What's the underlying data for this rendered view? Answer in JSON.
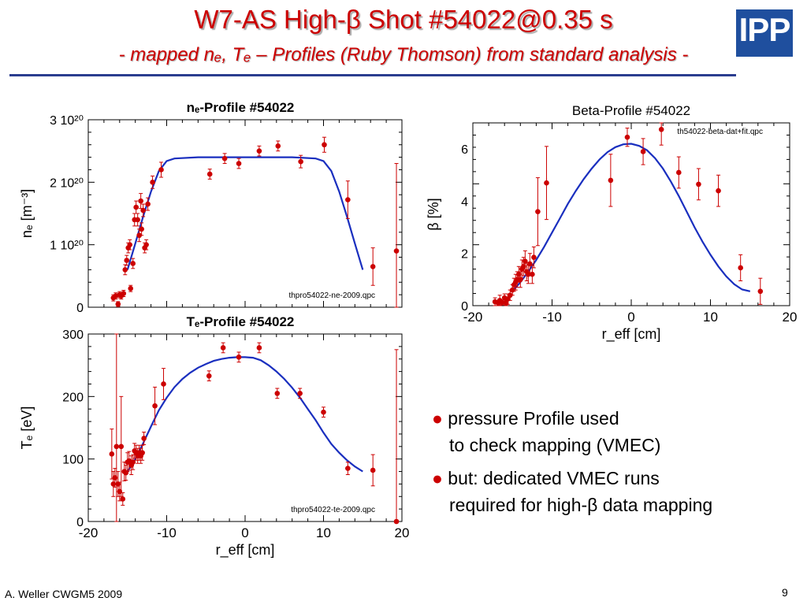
{
  "slide": {
    "title": "W7-AS High-β Shot #54022@0.35 s",
    "subtitle": "- mapped nₑ, Tₑ – Profiles (Ruby Thomson) from standard analysis -",
    "logo_text": "IPP",
    "footer": "A. Weller CWGM5 2009",
    "page_number": "9",
    "bullets": [
      {
        "line1": "pressure Profile used",
        "line2": "to check mapping (VMEC)"
      },
      {
        "line1": "but: dedicated VMEC runs",
        "line2": "required for high-β data mapping"
      }
    ]
  },
  "colors": {
    "title": "#cc0000",
    "points": "#cc0000",
    "fit_line": "#1a2fbf",
    "rule": "#2a3d8f",
    "logo": "#1f4f9e"
  },
  "chart_data": [
    {
      "id": "ne",
      "type": "scatter",
      "title": "nₑ-Profile #54022",
      "ylabel": "nₑ [m⁻³]",
      "xlabel": "",
      "xlim": [
        -20,
        20
      ],
      "ylim": [
        0,
        3.0
      ],
      "yticks": [
        {
          "v": 0,
          "label": "0"
        },
        {
          "v": 1,
          "label": "1 10²⁰"
        },
        {
          "v": 2,
          "label": "2 10²⁰"
        },
        {
          "v": 3,
          "label": "3 10²⁰"
        }
      ],
      "xticks": [],
      "annotation": "thpro54022-ne-2009.qpc",
      "y_unit_note": "values in 1e20 m^-3",
      "points": [
        [
          -16.8,
          0.15,
          0.05
        ],
        [
          -16.5,
          0.18,
          0.05
        ],
        [
          -16.2,
          0.05,
          0.04
        ],
        [
          -16.0,
          0.2,
          0.05
        ],
        [
          -15.8,
          0.18,
          0.05
        ],
        [
          -15.5,
          0.22,
          0.05
        ],
        [
          -15.3,
          0.6,
          0.08
        ],
        [
          -15.1,
          0.75,
          0.08
        ],
        [
          -14.9,
          0.95,
          0.08
        ],
        [
          -14.7,
          1.0,
          0.08
        ],
        [
          -14.6,
          0.3,
          0.05
        ],
        [
          -14.3,
          0.7,
          0.08
        ],
        [
          -14.1,
          1.4,
          0.1
        ],
        [
          -13.9,
          1.6,
          0.1
        ],
        [
          -13.7,
          1.4,
          0.1
        ],
        [
          -13.5,
          1.15,
          0.1
        ],
        [
          -13.3,
          1.7,
          0.12
        ],
        [
          -13.2,
          1.25,
          0.1
        ],
        [
          -13.0,
          1.55,
          0.1
        ],
        [
          -12.8,
          0.95,
          0.08
        ],
        [
          -12.6,
          1.0,
          0.08
        ],
        [
          -12.4,
          1.65,
          0.1
        ],
        [
          -11.8,
          2.0,
          0.1
        ],
        [
          -10.7,
          2.2,
          0.12
        ],
        [
          -4.5,
          2.13,
          0.08
        ],
        [
          -2.6,
          2.38,
          0.08
        ],
        [
          -0.8,
          2.3,
          0.08
        ],
        [
          1.8,
          2.5,
          0.08
        ],
        [
          4.2,
          2.58,
          0.08
        ],
        [
          7.1,
          2.33,
          0.1
        ],
        [
          10.1,
          2.6,
          0.12
        ],
        [
          13.1,
          1.72,
          0.3
        ],
        [
          16.3,
          0.65,
          0.3
        ],
        [
          19.3,
          0.9,
          1.4
        ]
      ],
      "fit": [
        [
          -15.0,
          0.6
        ],
        [
          -14.0,
          1.02
        ],
        [
          -13.0,
          1.45
        ],
        [
          -12.0,
          1.85
        ],
        [
          -11.0,
          2.18
        ],
        [
          -10.0,
          2.34
        ],
        [
          -9.0,
          2.38
        ],
        [
          -6.0,
          2.4
        ],
        [
          -3.0,
          2.4
        ],
        [
          0.0,
          2.4
        ],
        [
          3.0,
          2.4
        ],
        [
          6.0,
          2.4
        ],
        [
          9.0,
          2.38
        ],
        [
          10.0,
          2.34
        ],
        [
          11.0,
          2.18
        ],
        [
          12.0,
          1.85
        ],
        [
          13.0,
          1.45
        ],
        [
          14.0,
          1.02
        ],
        [
          15.0,
          0.6
        ]
      ]
    },
    {
      "id": "te",
      "type": "scatter",
      "title": "Tₑ-Profile #54022",
      "ylabel": "Tₑ [eV]",
      "xlabel": "r_eff [cm]",
      "xlim": [
        -20,
        20
      ],
      "ylim": [
        0,
        300
      ],
      "yticks": [
        {
          "v": 0,
          "label": "0"
        },
        {
          "v": 100,
          "label": "100"
        },
        {
          "v": 200,
          "label": "200"
        },
        {
          "v": 300,
          "label": "300"
        }
      ],
      "xticks": [
        {
          "v": -20,
          "label": "-20"
        },
        {
          "v": -10,
          "label": "-10"
        },
        {
          "v": 0,
          "label": "0"
        },
        {
          "v": 10,
          "label": "10"
        },
        {
          "v": 20,
          "label": "20"
        }
      ],
      "annotation": "thpro54022-te-2009.qpc",
      "points": [
        [
          -17.0,
          108,
          40
        ],
        [
          -16.8,
          60,
          20
        ],
        [
          -16.6,
          70,
          15
        ],
        [
          -16.4,
          120,
          200
        ],
        [
          -16.2,
          60,
          20
        ],
        [
          -16.0,
          48,
          15
        ],
        [
          -15.8,
          120,
          80
        ],
        [
          -15.6,
          36,
          10
        ],
        [
          -15.4,
          80,
          15
        ],
        [
          -15.2,
          78,
          12
        ],
        [
          -15.0,
          95,
          15
        ],
        [
          -14.8,
          97,
          15
        ],
        [
          -14.5,
          90,
          15
        ],
        [
          -14.3,
          95,
          12
        ],
        [
          -14.1,
          113,
          12
        ],
        [
          -13.9,
          110,
          12
        ],
        [
          -13.7,
          105,
          12
        ],
        [
          -13.5,
          110,
          12
        ],
        [
          -13.3,
          105,
          12
        ],
        [
          -13.1,
          110,
          12
        ],
        [
          -12.9,
          133,
          10
        ],
        [
          -11.5,
          185,
          30
        ],
        [
          -10.4,
          220,
          25
        ],
        [
          -4.6,
          233,
          8
        ],
        [
          -2.8,
          278,
          8
        ],
        [
          -0.8,
          263,
          8
        ],
        [
          1.8,
          278,
          8
        ],
        [
          4.1,
          205,
          8
        ],
        [
          7.0,
          205,
          8
        ],
        [
          10.0,
          175,
          8
        ],
        [
          13.1,
          85,
          10
        ],
        [
          16.3,
          82,
          25
        ],
        [
          19.3,
          0,
          275
        ]
      ],
      "fit": [
        [
          -15.0,
          80
        ],
        [
          -14.0,
          100
        ],
        [
          -13.0,
          125
        ],
        [
          -12.0,
          152
        ],
        [
          -11.0,
          178
        ],
        [
          -10.0,
          198
        ],
        [
          -9.0,
          215
        ],
        [
          -8.0,
          228
        ],
        [
          -7.0,
          238
        ],
        [
          -6.0,
          246
        ],
        [
          -5.0,
          252
        ],
        [
          -4.0,
          257
        ],
        [
          -3.0,
          260
        ],
        [
          -2.0,
          262
        ],
        [
          -1.0,
          263
        ],
        [
          0.0,
          263
        ],
        [
          1.0,
          262
        ],
        [
          2.0,
          258
        ],
        [
          3.0,
          250
        ],
        [
          4.0,
          240
        ],
        [
          5.0,
          228
        ],
        [
          6.0,
          214
        ],
        [
          7.0,
          198
        ],
        [
          8.0,
          180
        ],
        [
          9.0,
          162
        ],
        [
          10.0,
          142
        ],
        [
          11.0,
          124
        ],
        [
          12.0,
          110
        ],
        [
          13.0,
          98
        ],
        [
          14.0,
          88
        ],
        [
          15.0,
          80
        ]
      ]
    },
    {
      "id": "beta",
      "type": "scatter",
      "title": "Beta-Profile #54022",
      "ylabel": "β [%]",
      "xlabel": "r_eff [cm]",
      "xlim": [
        -20,
        20
      ],
      "ylim": [
        0,
        7
      ],
      "yticks": [
        {
          "v": 0,
          "label": "0"
        },
        {
          "v": 2,
          "label": "2"
        },
        {
          "v": 4,
          "label": "4"
        },
        {
          "v": 6,
          "label": "6"
        }
      ],
      "xticks": [
        {
          "v": -20,
          "label": "-20"
        },
        {
          "v": -10,
          "label": "-10"
        },
        {
          "v": 0,
          "label": "0"
        },
        {
          "v": 10,
          "label": "10"
        },
        {
          "v": 20,
          "label": "20"
        }
      ],
      "annotation": "th54022-beta-dat+fit.qpc",
      "points": [
        [
          -17.2,
          0.15,
          0.15
        ],
        [
          -16.8,
          0.1,
          0.1
        ],
        [
          -16.6,
          0.2,
          0.2
        ],
        [
          -16.3,
          0.12,
          0.1
        ],
        [
          -16.0,
          0.3,
          0.15
        ],
        [
          -15.8,
          0.1,
          0.1
        ],
        [
          -15.6,
          0.25,
          0.2
        ],
        [
          -15.3,
          0.4,
          0.2
        ],
        [
          -15.0,
          0.6,
          0.2
        ],
        [
          -14.8,
          0.8,
          0.25
        ],
        [
          -14.6,
          0.9,
          0.3
        ],
        [
          -14.4,
          1.0,
          0.3
        ],
        [
          -14.2,
          1.2,
          0.3
        ],
        [
          -14.0,
          1.0,
          0.3
        ],
        [
          -13.8,
          1.4,
          0.35
        ],
        [
          -13.6,
          1.5,
          0.35
        ],
        [
          -13.4,
          1.7,
          0.4
        ],
        [
          -13.2,
          1.3,
          0.35
        ],
        [
          -13.0,
          1.2,
          0.35
        ],
        [
          -12.8,
          1.6,
          0.4
        ],
        [
          -12.5,
          1.2,
          0.35
        ],
        [
          -12.3,
          1.85,
          0.4
        ],
        [
          -11.8,
          3.6,
          1.3
        ],
        [
          -10.7,
          4.7,
          1.4
        ],
        [
          -2.6,
          4.8,
          1.0
        ],
        [
          -0.5,
          6.45,
          0.35
        ],
        [
          1.5,
          5.9,
          0.5
        ],
        [
          3.8,
          6.75,
          0.6
        ],
        [
          6.0,
          5.1,
          0.6
        ],
        [
          8.5,
          4.65,
          0.6
        ],
        [
          11.0,
          4.4,
          0.6
        ],
        [
          13.8,
          1.45,
          0.5
        ],
        [
          16.3,
          0.55,
          0.5
        ]
      ],
      "fit": [
        [
          -15.0,
          0.55
        ],
        [
          -14.0,
          0.9
        ],
        [
          -13.0,
          1.3
        ],
        [
          -12.0,
          1.75
        ],
        [
          -11.0,
          2.25
        ],
        [
          -10.0,
          2.8
        ],
        [
          -9.0,
          3.35
        ],
        [
          -8.0,
          3.9
        ],
        [
          -7.0,
          4.4
        ],
        [
          -6.0,
          4.85
        ],
        [
          -5.0,
          5.25
        ],
        [
          -4.0,
          5.6
        ],
        [
          -3.0,
          5.88
        ],
        [
          -2.0,
          6.07
        ],
        [
          -1.0,
          6.18
        ],
        [
          0.0,
          6.2
        ],
        [
          1.0,
          6.12
        ],
        [
          2.0,
          5.95
        ],
        [
          3.0,
          5.65
        ],
        [
          4.0,
          5.25
        ],
        [
          5.0,
          4.75
        ],
        [
          6.0,
          4.2
        ],
        [
          7.0,
          3.6
        ],
        [
          8.0,
          3.0
        ],
        [
          9.0,
          2.45
        ],
        [
          10.0,
          1.95
        ],
        [
          11.0,
          1.5
        ],
        [
          12.0,
          1.12
        ],
        [
          13.0,
          0.82
        ],
        [
          14.0,
          0.62
        ],
        [
          15.0,
          0.55
        ]
      ]
    }
  ]
}
